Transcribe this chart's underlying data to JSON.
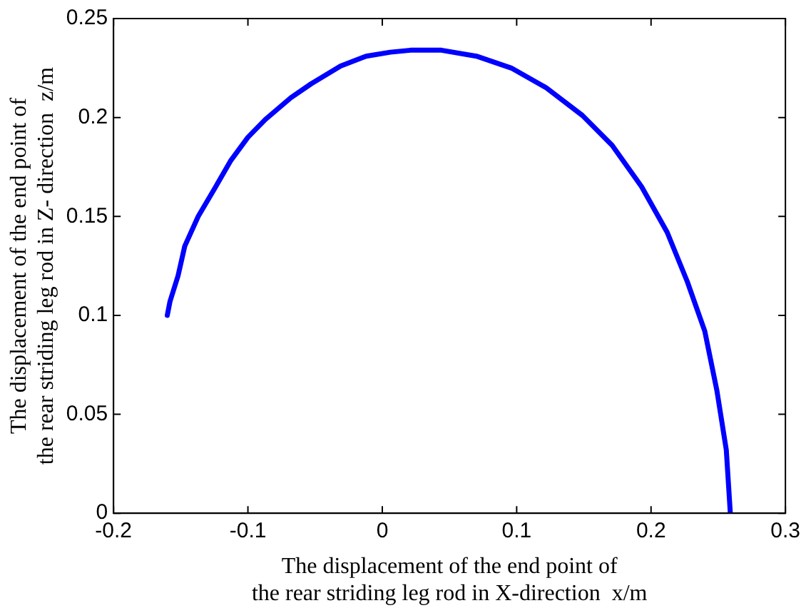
{
  "chart_data": {
    "type": "line",
    "xlabel": "The displacement of the end point of\nthe rear striding leg rod in X-direction  x/m",
    "ylabel": "The displacement of the end point of\nthe rear striding leg rod in Z- direction  z/m",
    "xlim": [
      -0.2,
      0.3
    ],
    "xticks": [
      -0.2,
      -0.1,
      0,
      0.1,
      0.2,
      0.3
    ],
    "ylim": [
      0,
      0.25
    ],
    "yticks": [
      0,
      0.05,
      0.1,
      0.15,
      0.2,
      0.25
    ],
    "marker": "none",
    "line_style": "solid",
    "legend": false,
    "series": [
      {
        "color": "#0000ff",
        "x": [
          -0.16,
          -0.158,
          -0.152,
          -0.147,
          -0.137,
          -0.124,
          -0.113,
          -0.1,
          -0.087,
          -0.068,
          -0.053,
          -0.031,
          -0.012,
          0.006,
          0.021,
          0.036,
          0.044,
          0.07,
          0.096,
          0.122,
          0.149,
          0.171,
          0.193,
          0.212,
          0.227,
          0.24,
          0.249,
          0.256,
          0.259
        ],
        "values": [
          0.1,
          0.107,
          0.12,
          0.135,
          0.15,
          0.165,
          0.178,
          0.19,
          0.199,
          0.21,
          0.217,
          0.226,
          0.231,
          0.233,
          0.234,
          0.234,
          0.234,
          0.231,
          0.225,
          0.215,
          0.201,
          0.186,
          0.165,
          0.142,
          0.117,
          0.092,
          0.062,
          0.032,
          0
        ]
      }
    ]
  }
}
